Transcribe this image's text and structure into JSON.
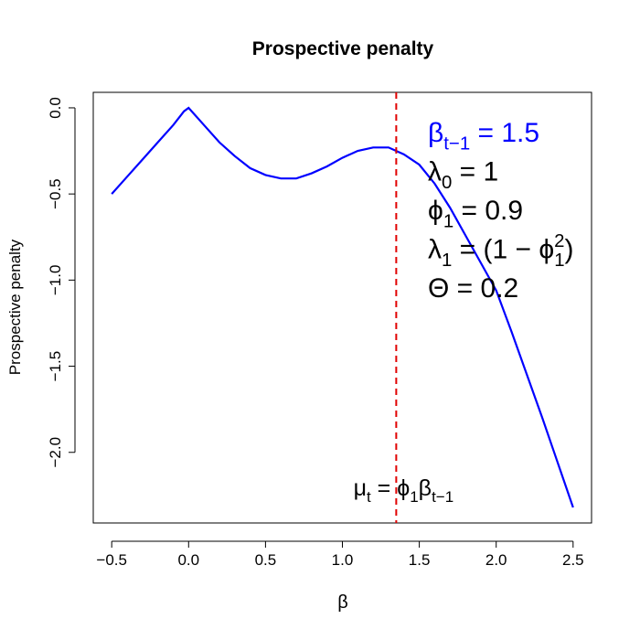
{
  "chart_data": {
    "type": "line",
    "title": "Prospective penalty",
    "x_label": "β",
    "y_label": "Prospective penalty",
    "x": [
      -0.5,
      -0.4,
      -0.3,
      -0.2,
      -0.1,
      -0.03,
      0,
      0.1,
      0.2,
      0.3,
      0.4,
      0.5,
      0.6,
      0.7,
      0.8,
      0.9,
      1.0,
      1.1,
      1.2,
      1.3,
      1.4,
      1.5,
      1.6,
      1.7,
      1.8,
      1.9,
      2.0,
      2.1,
      2.2,
      2.3,
      2.4,
      2.5
    ],
    "values": [
      -0.5,
      -0.4,
      -0.3,
      -0.2,
      -0.1,
      -0.02,
      0,
      -0.1,
      -0.2,
      -0.28,
      -0.35,
      -0.39,
      -0.41,
      -0.41,
      -0.38,
      -0.34,
      -0.29,
      -0.25,
      -0.23,
      -0.23,
      -0.27,
      -0.33,
      -0.44,
      -0.58,
      -0.74,
      -0.9,
      -1.06,
      -1.3,
      -1.55,
      -1.8,
      -2.06,
      -2.32
    ],
    "color": "#0000ff",
    "vline": 1.35,
    "vline_color": "#e00000",
    "xlim": [
      -0.62,
      2.62
    ],
    "ylim": [
      -2.41,
      0.09
    ],
    "xticks": [
      {
        "value": -0.5,
        "label": "−0.5"
      },
      {
        "value": 0,
        "label": "0.0"
      },
      0.5,
      {
        "value": 1,
        "label": "1.0"
      },
      1.5,
      {
        "value": 2,
        "label": "2.0"
      },
      2.5
    ],
    "yticks": [
      {
        "value": 0,
        "label": "0.0"
      },
      {
        "value": -0.5,
        "label": "−0.5"
      },
      {
        "value": -1,
        "label": "−1.0"
      },
      {
        "value": -1.5,
        "label": "−1.5"
      },
      {
        "value": -2,
        "label": "−2.0"
      }
    ],
    "annotations": [
      {
        "color": "#0000ff",
        "parts": [
          {
            "t": "β"
          },
          {
            "sub": "t−1"
          },
          {
            "t": " = 1.5"
          }
        ]
      },
      {
        "color": "#000000",
        "parts": [
          {
            "t": "λ"
          },
          {
            "sub": "0"
          },
          {
            "t": " = 1"
          }
        ]
      },
      {
        "color": "#000000",
        "parts": [
          {
            "t": "ϕ"
          },
          {
            "sub": "1"
          },
          {
            "t": " = 0.9"
          }
        ]
      },
      {
        "color": "#000000",
        "parts": [
          {
            "t": "λ"
          },
          {
            "sub": "1"
          },
          {
            "t": " = (1 − ϕ"
          },
          {
            "sub": "1"
          },
          {
            "sup": "2"
          },
          {
            "t": ")"
          }
        ]
      },
      {
        "color": "#000000",
        "parts": [
          {
            "t": "Θ = 0.2"
          }
        ]
      }
    ],
    "vline_label": {
      "color": "#000000",
      "parts": [
        {
          "t": "μ"
        },
        {
          "sub": "t"
        },
        {
          "t": " = ϕ"
        },
        {
          "sub": "1"
        },
        {
          "t": "β"
        },
        {
          "sub": "t−1"
        }
      ]
    }
  }
}
